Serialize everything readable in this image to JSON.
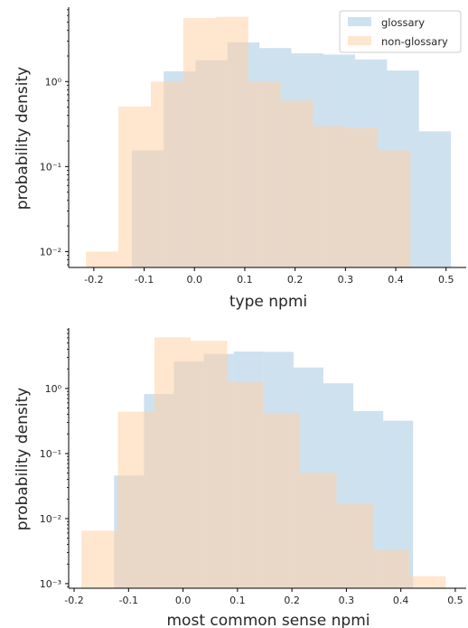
{
  "colors": {
    "glossary": "#a6c9e2",
    "non_glossary": "#ffd1a6",
    "axis": "#000000",
    "text": "#262626"
  },
  "legend": {
    "glossary": "glossary",
    "non_glossary": "non-glossary"
  },
  "chart_data": [
    {
      "type": "histogram",
      "xlabel": "type npmi",
      "ylabel": "probability density",
      "yscale": "log",
      "xlim": [
        -0.25,
        0.54
      ],
      "ylim": [
        0.0065,
        7.5
      ],
      "xticks": [
        -0.2,
        -0.1,
        0.0,
        0.1,
        0.2,
        0.3,
        0.4,
        0.5
      ],
      "xtick_labels": [
        "-0.2",
        "-0.1",
        "0.0",
        "0.1",
        "0.2",
        "0.3",
        "0.4",
        "0.5"
      ],
      "yticks": [
        0.01,
        0.1,
        1
      ],
      "ytick_labels": [
        "10⁻²",
        "10⁻¹",
        "10⁰"
      ],
      "legend_position": "top-right",
      "series": [
        {
          "name": "glossary",
          "edges": [
            -0.1245,
            -0.0611,
            0.0023,
            0.0657,
            0.1291,
            0.1925,
            0.2559,
            0.3193,
            0.3827,
            0.4461,
            0.5095
          ],
          "values": [
            0.155,
            1.32,
            1.78,
            2.9,
            2.48,
            2.15,
            2.08,
            1.82,
            1.35,
            0.26
          ]
        },
        {
          "name": "non-glossary",
          "edges": [
            -0.2157,
            -0.1512,
            -0.0867,
            -0.0222,
            0.0423,
            0.1068,
            0.1713,
            0.2358,
            0.3003,
            0.3648,
            0.4293
          ],
          "values": [
            0.01,
            0.51,
            1.0,
            5.6,
            5.8,
            1.0,
            0.6,
            0.3,
            0.285,
            0.155
          ]
        }
      ]
    },
    {
      "type": "histogram",
      "xlabel": "most common sense npmi",
      "ylabel": "probability density",
      "yscale": "log",
      "xlim": [
        -0.21,
        0.52
      ],
      "ylim": [
        0.00085,
        8.5
      ],
      "xticks": [
        -0.2,
        -0.1,
        0.0,
        0.1,
        0.2,
        0.3,
        0.4,
        0.5
      ],
      "xtick_labels": [
        "-0.2",
        "-0.1",
        "0.0",
        "0.1",
        "0.2",
        "0.3",
        "0.4",
        "0.5"
      ],
      "yticks": [
        0.001,
        0.01,
        0.1,
        1
      ],
      "ytick_labels": [
        "10⁻³",
        "10⁻²",
        "10⁻¹",
        "10⁰"
      ],
      "legend_position": "none",
      "series": [
        {
          "name": "glossary",
          "edges": [
            -0.1265,
            -0.0716,
            -0.0167,
            0.0382,
            0.0931,
            0.148,
            0.2029,
            0.2578,
            0.3127,
            0.3676,
            0.4225
          ],
          "values": [
            0.046,
            0.82,
            2.6,
            3.4,
            3.7,
            3.65,
            2.1,
            1.2,
            0.45,
            0.32
          ]
        },
        {
          "name": "non-glossary",
          "edges": [
            -0.1865,
            -0.1196,
            -0.0527,
            0.0142,
            0.0811,
            0.148,
            0.2149,
            0.2818,
            0.3487,
            0.4156,
            0.4825
          ],
          "values": [
            0.0065,
            0.44,
            6.1,
            5.4,
            1.25,
            0.42,
            0.05,
            0.017,
            0.0033,
            0.0013
          ]
        }
      ]
    }
  ]
}
